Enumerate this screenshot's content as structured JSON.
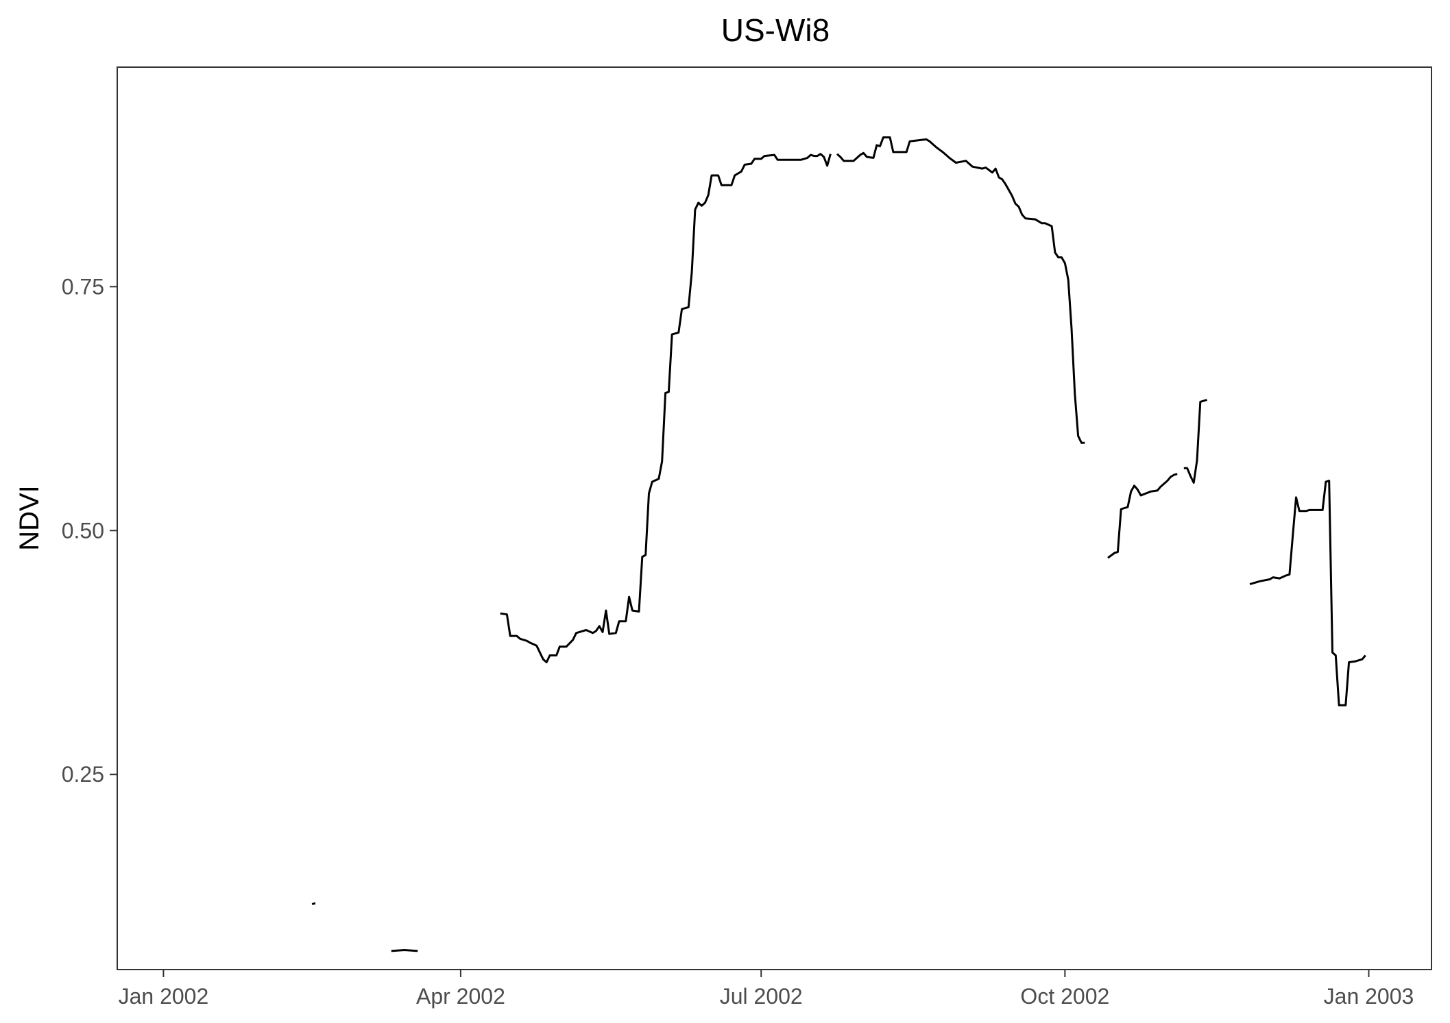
{
  "chart_data": {
    "type": "line",
    "title": "US-Wi8",
    "xlabel": "",
    "ylabel": "NDVI",
    "x_axis": {
      "type": "date",
      "range": [
        "2001-12-18",
        "2003-01-20"
      ],
      "ticks": [
        {
          "date": "2002-01-01",
          "label": "Jan 2002"
        },
        {
          "date": "2002-04-01",
          "label": "Apr 2002"
        },
        {
          "date": "2002-07-01",
          "label": "Jul 2002"
        },
        {
          "date": "2002-10-01",
          "label": "Oct 2002"
        },
        {
          "date": "2003-01-01",
          "label": "Jan 2003"
        }
      ]
    },
    "y_axis": {
      "range": [
        0.05,
        0.975
      ],
      "ticks": [
        {
          "value": 0.25,
          "label": "0.25"
        },
        {
          "value": 0.5,
          "label": "0.50"
        },
        {
          "value": 0.75,
          "label": "0.75"
        }
      ]
    },
    "grid": false,
    "line_color": "#000000",
    "series": [
      {
        "segments": [
          [
            [
              "2002-02-15",
              0.117
            ],
            [
              "2002-02-16",
              0.118
            ]
          ],
          [
            [
              "2002-03-11",
              0.069
            ],
            [
              "2002-03-15",
              0.07
            ],
            [
              "2002-03-19",
              0.069
            ]
          ],
          [
            [
              "2002-04-13",
              0.415
            ],
            [
              "2002-04-15",
              0.414
            ],
            [
              "2002-04-16",
              0.392
            ],
            [
              "2002-04-18",
              0.392
            ],
            [
              "2002-04-19",
              0.389
            ],
            [
              "2002-04-21",
              0.387
            ],
            [
              "2002-04-22",
              0.385
            ],
            [
              "2002-04-24",
              0.382
            ],
            [
              "2002-04-25",
              0.375
            ],
            [
              "2002-04-26",
              0.368
            ],
            [
              "2002-04-27",
              0.365
            ],
            [
              "2002-04-28",
              0.372
            ],
            [
              "2002-04-30",
              0.372
            ],
            [
              "2002-05-01",
              0.381
            ],
            [
              "2002-05-03",
              0.381
            ],
            [
              "2002-05-05",
              0.388
            ],
            [
              "2002-05-06",
              0.395
            ],
            [
              "2002-05-08",
              0.397
            ],
            [
              "2002-05-09",
              0.398
            ],
            [
              "2002-05-11",
              0.395
            ],
            [
              "2002-05-12",
              0.397
            ],
            [
              "2002-05-13",
              0.402
            ],
            [
              "2002-05-14",
              0.396
            ],
            [
              "2002-05-15",
              0.418
            ],
            [
              "2002-05-16",
              0.394
            ],
            [
              "2002-05-18",
              0.395
            ],
            [
              "2002-05-19",
              0.407
            ],
            [
              "2002-05-21",
              0.407
            ],
            [
              "2002-05-22",
              0.432
            ],
            [
              "2002-05-23",
              0.418
            ],
            [
              "2002-05-25",
              0.417
            ],
            [
              "2002-05-26",
              0.473
            ],
            [
              "2002-05-27",
              0.475
            ],
            [
              "2002-05-28",
              0.538
            ],
            [
              "2002-05-29",
              0.55
            ],
            [
              "2002-05-31",
              0.553
            ],
            [
              "2002-06-01",
              0.571
            ],
            [
              "2002-06-02",
              0.641
            ],
            [
              "2002-06-03",
              0.642
            ],
            [
              "2002-06-04",
              0.701
            ],
            [
              "2002-06-06",
              0.703
            ],
            [
              "2002-06-07",
              0.727
            ],
            [
              "2002-06-09",
              0.729
            ],
            [
              "2002-06-10",
              0.765
            ],
            [
              "2002-06-11",
              0.829
            ],
            [
              "2002-06-12",
              0.836
            ],
            [
              "2002-06-13",
              0.833
            ],
            [
              "2002-06-14",
              0.836
            ],
            [
              "2002-06-15",
              0.844
            ],
            [
              "2002-06-16",
              0.864
            ],
            [
              "2002-06-18",
              0.864
            ],
            [
              "2002-06-19",
              0.854
            ],
            [
              "2002-06-22",
              0.854
            ],
            [
              "2002-06-23",
              0.864
            ],
            [
              "2002-06-25",
              0.868
            ],
            [
              "2002-06-26",
              0.875
            ],
            [
              "2002-06-28",
              0.876
            ],
            [
              "2002-06-29",
              0.881
            ],
            [
              "2002-07-01",
              0.881
            ],
            [
              "2002-07-02",
              0.884
            ],
            [
              "2002-07-05",
              0.885
            ],
            [
              "2002-07-06",
              0.88
            ],
            [
              "2002-07-13",
              0.88
            ],
            [
              "2002-07-15",
              0.882
            ],
            [
              "2002-07-16",
              0.885
            ],
            [
              "2002-07-17",
              0.884
            ],
            [
              "2002-07-18",
              0.884
            ],
            [
              "2002-07-19",
              0.886
            ],
            [
              "2002-07-20",
              0.883
            ],
            [
              "2002-07-21",
              0.874
            ],
            [
              "2002-07-22",
              0.886
            ]
          ],
          [
            [
              "2002-07-24",
              0.886
            ],
            [
              "2002-07-25",
              0.883
            ],
            [
              "2002-07-26",
              0.879
            ],
            [
              "2002-07-29",
              0.879
            ],
            [
              "2002-07-31",
              0.885
            ],
            [
              "2002-08-01",
              0.887
            ],
            [
              "2002-08-02",
              0.883
            ],
            [
              "2002-08-04",
              0.882
            ],
            [
              "2002-08-05",
              0.895
            ],
            [
              "2002-08-06",
              0.894
            ],
            [
              "2002-08-07",
              0.903
            ],
            [
              "2002-08-09",
              0.903
            ],
            [
              "2002-08-10",
              0.888
            ],
            [
              "2002-08-14",
              0.888
            ],
            [
              "2002-08-15",
              0.899
            ],
            [
              "2002-08-20",
              0.901
            ],
            [
              "2002-08-21",
              0.899
            ],
            [
              "2002-08-23",
              0.893
            ],
            [
              "2002-08-25",
              0.888
            ],
            [
              "2002-08-27",
              0.882
            ],
            [
              "2002-08-29",
              0.877
            ],
            [
              "2002-09-01",
              0.879
            ],
            [
              "2002-09-03",
              0.873
            ],
            [
              "2002-09-06",
              0.871
            ],
            [
              "2002-09-07",
              0.872
            ],
            [
              "2002-09-09",
              0.867
            ],
            [
              "2002-09-10",
              0.871
            ],
            [
              "2002-09-11",
              0.862
            ],
            [
              "2002-09-12",
              0.86
            ],
            [
              "2002-09-13",
              0.855
            ],
            [
              "2002-09-14",
              0.849
            ],
            [
              "2002-09-15",
              0.843
            ],
            [
              "2002-09-16",
              0.835
            ],
            [
              "2002-09-17",
              0.832
            ],
            [
              "2002-09-18",
              0.824
            ],
            [
              "2002-09-19",
              0.82
            ],
            [
              "2002-09-22",
              0.819
            ],
            [
              "2002-09-24",
              0.815
            ],
            [
              "2002-09-25",
              0.815
            ],
            [
              "2002-09-27",
              0.812
            ],
            [
              "2002-09-28",
              0.785
            ],
            [
              "2002-09-29",
              0.78
            ],
            [
              "2002-09-30",
              0.78
            ],
            [
              "2002-10-01",
              0.774
            ],
            [
              "2002-10-02",
              0.757
            ],
            [
              "2002-10-03",
              0.707
            ],
            [
              "2002-10-04",
              0.64
            ],
            [
              "2002-10-05",
              0.597
            ],
            [
              "2002-10-06",
              0.59
            ],
            [
              "2002-10-07",
              0.59
            ]
          ],
          [
            [
              "2002-10-14",
              0.472
            ],
            [
              "2002-10-16",
              0.477
            ],
            [
              "2002-10-17",
              0.478
            ],
            [
              "2002-10-18",
              0.522
            ],
            [
              "2002-10-20",
              0.524
            ],
            [
              "2002-10-21",
              0.54
            ],
            [
              "2002-10-22",
              0.546
            ],
            [
              "2002-10-23",
              0.542
            ],
            [
              "2002-10-24",
              0.536
            ],
            [
              "2002-10-27",
              0.54
            ],
            [
              "2002-10-29",
              0.541
            ],
            [
              "2002-10-30",
              0.545
            ],
            [
              "2002-11-01",
              0.551
            ],
            [
              "2002-11-02",
              0.555
            ],
            [
              "2002-11-03",
              0.557
            ],
            [
              "2002-11-04",
              0.558
            ]
          ],
          [
            [
              "2002-11-06",
              0.564
            ],
            [
              "2002-11-07",
              0.564
            ],
            [
              "2002-11-08",
              0.556
            ],
            [
              "2002-11-09",
              0.549
            ],
            [
              "2002-11-10",
              0.572
            ],
            [
              "2002-11-11",
              0.632
            ],
            [
              "2002-11-13",
              0.634
            ]
          ],
          [
            [
              "2002-11-26",
              0.445
            ],
            [
              "2002-11-29",
              0.448
            ],
            [
              "2002-12-02",
              0.45
            ],
            [
              "2002-12-03",
              0.452
            ],
            [
              "2002-12-05",
              0.451
            ],
            [
              "2002-12-07",
              0.454
            ],
            [
              "2002-12-08",
              0.455
            ],
            [
              "2002-12-09",
              0.495
            ],
            [
              "2002-12-10",
              0.534
            ],
            [
              "2002-12-11",
              0.52
            ],
            [
              "2002-12-13",
              0.52
            ],
            [
              "2002-12-14",
              0.521
            ],
            [
              "2002-12-16",
              0.521
            ],
            [
              "2002-12-18",
              0.521
            ],
            [
              "2002-12-19",
              0.55
            ],
            [
              "2002-12-20",
              0.551
            ],
            [
              "2002-12-21",
              0.375
            ],
            [
              "2002-12-22",
              0.372
            ],
            [
              "2002-12-23",
              0.321
            ],
            [
              "2002-12-25",
              0.321
            ],
            [
              "2002-12-26",
              0.365
            ],
            [
              "2002-12-28",
              0.366
            ],
            [
              "2002-12-30",
              0.368
            ],
            [
              "2002-12-31",
              0.372
            ]
          ]
        ]
      }
    ]
  }
}
